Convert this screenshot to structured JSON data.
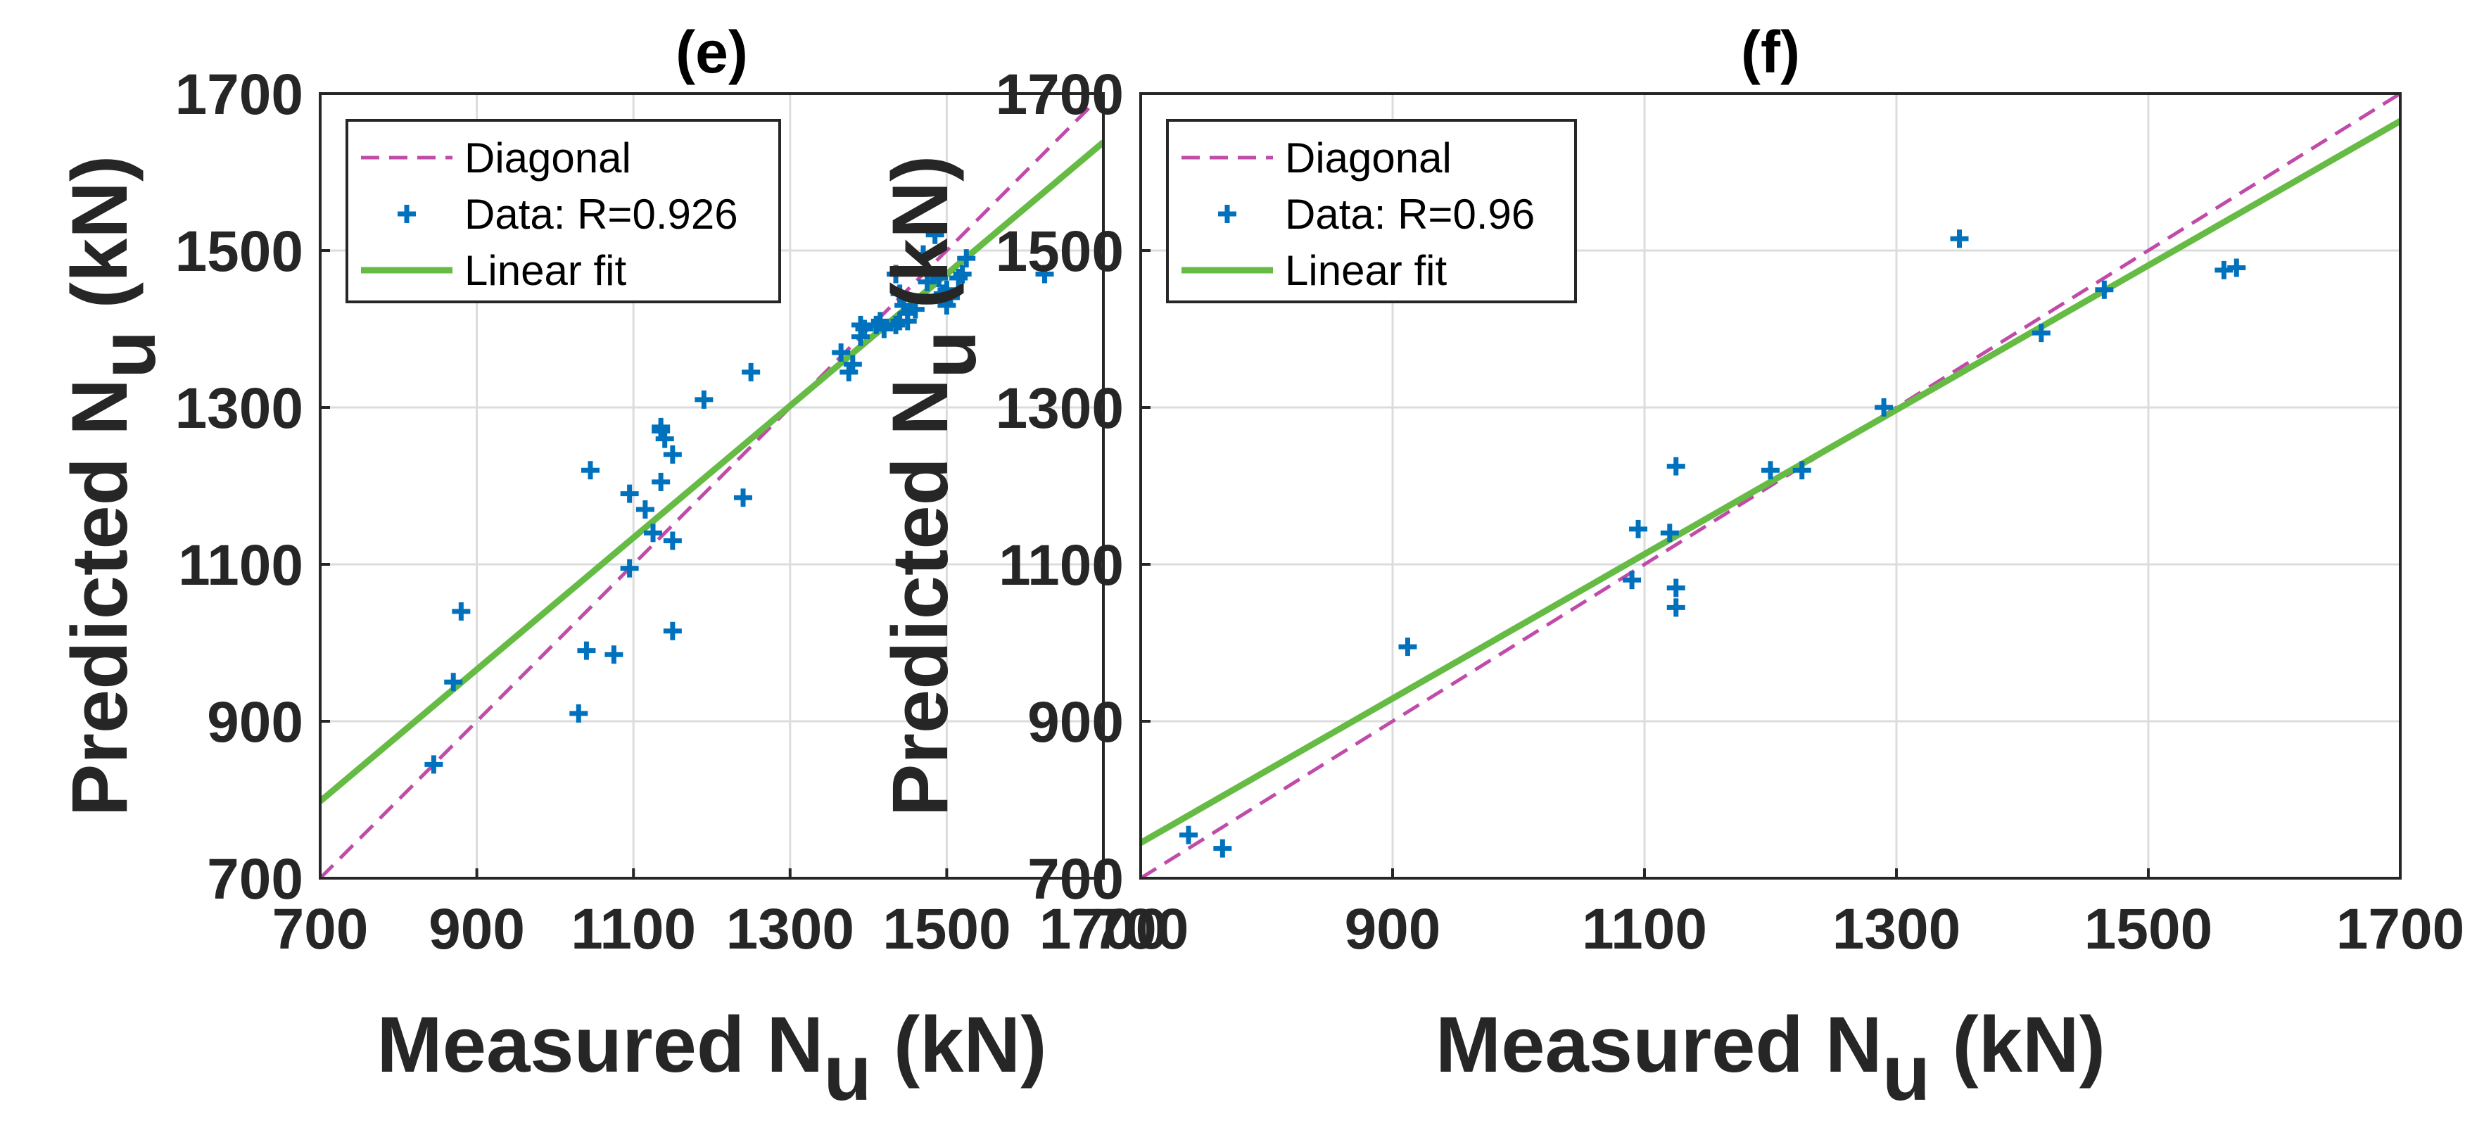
{
  "chart_data": [
    {
      "type": "scatter",
      "title": "(e)",
      "xlabel": {
        "main": "Measured N",
        "sub": "u",
        "unit": " (kN)"
      },
      "ylabel": {
        "main": "Predicted N",
        "sub": "u",
        "unit": " (kN)"
      },
      "xlim": [
        700,
        1700
      ],
      "ylim": [
        700,
        1700
      ],
      "ticks": [
        700,
        900,
        1100,
        1300,
        1500,
        1700
      ],
      "grid": true,
      "legend": {
        "position": "top-left",
        "entries": [
          "Diagonal",
          "Data: R=0.926",
          "Linear fit"
        ]
      },
      "series": [
        {
          "name": "Diagonal",
          "kind": "line",
          "style": "dashed",
          "color": "#C04BA8",
          "x": [
            700,
            1700
          ],
          "y": [
            700,
            1700
          ]
        },
        {
          "name": "Data: R=0.926",
          "kind": "markers",
          "marker": "plus",
          "color": "#0072BD",
          "x": [
            845,
            870,
            880,
            1030,
            1040,
            1045,
            1075,
            1095,
            1095,
            1115,
            1125,
            1135,
            1135,
            1135,
            1140,
            1150,
            1150,
            1150,
            1190,
            1240,
            1250,
            1365,
            1375,
            1380,
            1390,
            1390,
            1395,
            1410,
            1415,
            1420,
            1435,
            1435,
            1440,
            1440,
            1445,
            1450,
            1450,
            1460,
            1470,
            1475,
            1485,
            1490,
            1495,
            1500,
            1500,
            1505,
            1515,
            1520,
            1525,
            1625
          ],
          "y": [
            845,
            950,
            1040,
            910,
            990,
            1220,
            985,
            1095,
            1190,
            1170,
            1140,
            1205,
            1270,
            1275,
            1260,
            1130,
            1240,
            1015,
            1310,
            1185,
            1345,
            1370,
            1345,
            1355,
            1390,
            1405,
            1400,
            1405,
            1410,
            1400,
            1405,
            1470,
            1410,
            1445,
            1430,
            1410,
            1420,
            1425,
            1495,
            1460,
            1520,
            1465,
            1445,
            1430,
            1450,
            1440,
            1465,
            1470,
            1490,
            1470
          ]
        },
        {
          "name": "Linear fit",
          "kind": "line",
          "style": "solid",
          "color": "#66BB44",
          "x": [
            700,
            1700
          ],
          "y": [
            798,
            1638
          ]
        }
      ]
    },
    {
      "type": "scatter",
      "title": "(f)",
      "xlabel": {
        "main": "Measured N",
        "sub": "u",
        "unit": " (kN)"
      },
      "ylabel": {
        "main": "Predicted N",
        "sub": "u",
        "unit": " (kN)"
      },
      "xlim": [
        700,
        1700
      ],
      "ylim": [
        700,
        1700
      ],
      "ticks": [
        700,
        900,
        1100,
        1300,
        1500,
        1700
      ],
      "grid": true,
      "legend": {
        "position": "top-left",
        "entries": [
          "Diagonal",
          "Data: R=0.96",
          "Linear fit"
        ]
      },
      "series": [
        {
          "name": "Diagonal",
          "kind": "line",
          "style": "dashed",
          "color": "#C04BA8",
          "x": [
            700,
            1700
          ],
          "y": [
            700,
            1700
          ]
        },
        {
          "name": "Data: R=0.96",
          "kind": "markers",
          "marker": "plus",
          "color": "#0072BD",
          "x": [
            738,
            765,
            912,
            1090,
            1095,
            1120,
            1125,
            1125,
            1125,
            1200,
            1225,
            1290,
            1350,
            1415,
            1465,
            1560,
            1570
          ],
          "y": [
            755,
            738,
            995,
            1080,
            1145,
            1140,
            1045,
            1070,
            1225,
            1220,
            1220,
            1300,
            1515,
            1395,
            1450,
            1475,
            1478
          ]
        },
        {
          "name": "Linear fit",
          "kind": "line",
          "style": "solid",
          "color": "#66BB44",
          "x": [
            700,
            1700
          ],
          "y": [
            745,
            1665
          ]
        }
      ]
    }
  ]
}
